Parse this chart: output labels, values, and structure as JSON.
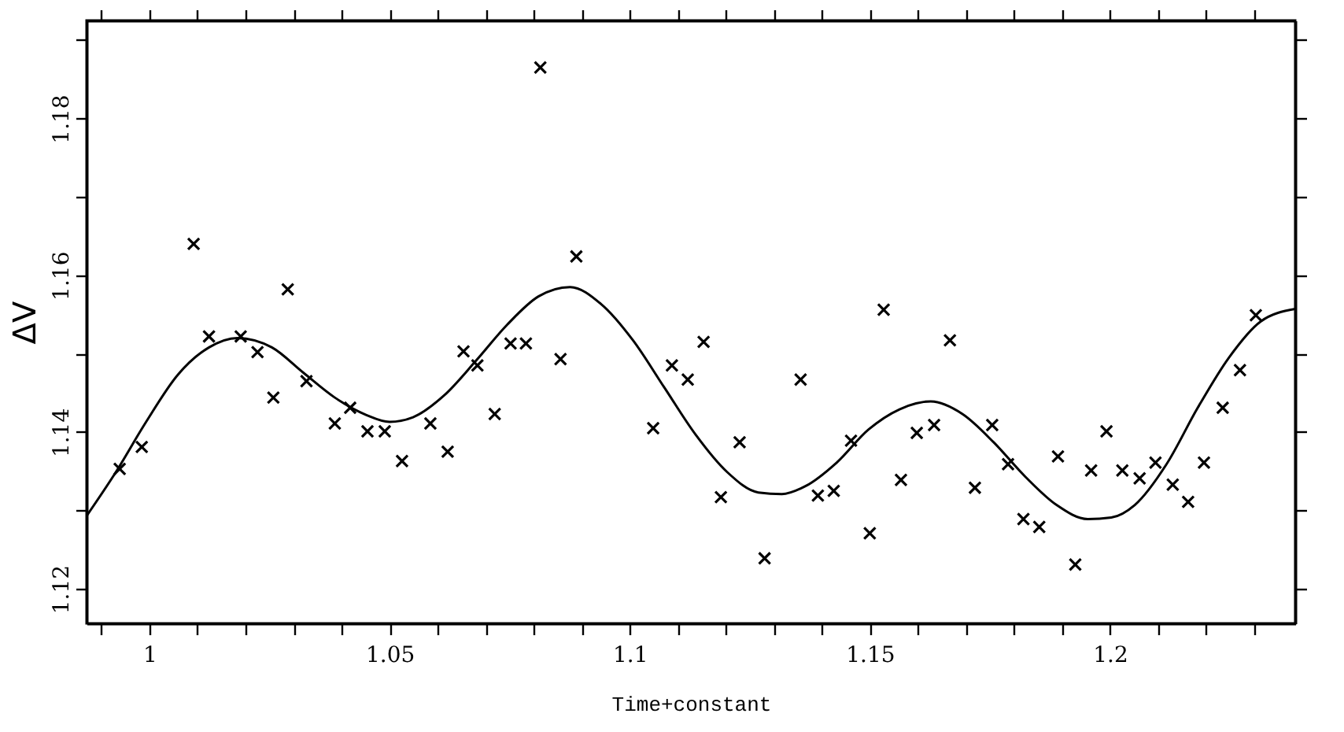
{
  "chart_data": {
    "type": "scatter",
    "xlabel": "Time+constant",
    "ylabel": "ΔV",
    "xlim": [
      0.9869,
      1.2386
    ],
    "ylim": [
      1.1156,
      1.1925
    ],
    "xticks": [
      {
        "value": 0.99,
        "label": null
      },
      1,
      {
        "value": 1.01,
        "label": null
      },
      {
        "value": 1.02,
        "label": null
      },
      {
        "value": 1.03,
        "label": null
      },
      {
        "value": 1.04,
        "label": null
      },
      1.05,
      {
        "value": 1.06,
        "label": null
      },
      {
        "value": 1.07,
        "label": null
      },
      {
        "value": 1.08,
        "label": null
      },
      {
        "value": 1.09,
        "label": null
      },
      1.1,
      {
        "value": 1.11,
        "label": null
      },
      {
        "value": 1.12,
        "label": null
      },
      {
        "value": 1.13,
        "label": null
      },
      {
        "value": 1.14,
        "label": null
      },
      1.15,
      {
        "value": 1.16,
        "label": null
      },
      {
        "value": 1.17,
        "label": null
      },
      {
        "value": 1.18,
        "label": null
      },
      {
        "value": 1.19,
        "label": null
      },
      1.2,
      {
        "value": 1.21,
        "label": null
      },
      {
        "value": 1.22,
        "label": null
      },
      {
        "value": 1.23,
        "label": null
      }
    ],
    "yticks": [
      1.12,
      {
        "value": 1.13,
        "label": null
      },
      1.14,
      {
        "value": 1.15,
        "label": null
      },
      1.16,
      {
        "value": 1.17,
        "label": null
      },
      1.18,
      {
        "value": 1.19,
        "label": null
      }
    ],
    "grid": false,
    "series": [
      {
        "marker": "cross",
        "color": "#000000",
        "x": [
          0.9938,
          0.9984,
          1.0092,
          1.0124,
          1.019,
          1.0225,
          1.0258,
          1.0288,
          1.0327,
          1.0386,
          1.0418,
          1.0454,
          1.049,
          1.0526,
          1.0585,
          1.0621,
          1.0654,
          1.0683,
          1.0719,
          1.0752,
          1.0784,
          1.0814,
          1.0856,
          1.0889,
          1.1049,
          1.1088,
          1.1121,
          1.1154,
          1.119,
          1.1229,
          1.1281,
          1.1356,
          1.1392,
          1.1425,
          1.1461,
          1.15,
          1.1529,
          1.1565,
          1.1598,
          1.1634,
          1.1667,
          1.1719,
          1.1755,
          1.1788,
          1.182,
          1.1853,
          1.1892,
          1.1928,
          1.1961,
          1.1993,
          1.2026,
          1.2062,
          1.2095,
          1.2131,
          1.2163,
          1.2196,
          1.2235,
          1.2271,
          1.2304
        ],
        "values": [
          1.1353,
          1.1381,
          1.164,
          1.1522,
          1.1522,
          1.1502,
          1.1444,
          1.1582,
          1.1465,
          1.1411,
          1.1431,
          1.1401,
          1.1401,
          1.1363,
          1.1411,
          1.1375,
          1.1503,
          1.1485,
          1.1423,
          1.1513,
          1.1513,
          1.1865,
          1.1493,
          1.1624,
          1.1405,
          1.1485,
          1.1467,
          1.1515,
          1.1317,
          1.1387,
          1.1239,
          1.1467,
          1.1319,
          1.1325,
          1.1389,
          1.1271,
          1.1556,
          1.1339,
          1.1399,
          1.1409,
          1.1517,
          1.1329,
          1.1409,
          1.1359,
          1.1289,
          1.1279,
          1.1369,
          1.1231,
          1.1351,
          1.1401,
          1.1351,
          1.1341,
          1.1361,
          1.1333,
          1.1311,
          1.1361,
          1.1431,
          1.1479,
          1.1549
        ]
      },
      {
        "type": "line",
        "line_style": "solid",
        "color": "#000000",
        "x": [
          0.9869,
          0.9928,
          0.9993,
          1.0059,
          1.0124,
          1.0183,
          1.0255,
          1.032,
          1.0386,
          1.0451,
          1.05,
          1.0549,
          1.0614,
          1.068,
          1.0745,
          1.081,
          1.0876,
          1.0941,
          1.1007,
          1.1072,
          1.1137,
          1.1203,
          1.1268,
          1.1317,
          1.1366,
          1.1431,
          1.1497,
          1.1562,
          1.1627,
          1.1693,
          1.1758,
          1.1824,
          1.1889,
          1.1954,
          1.2003,
          1.2052,
          1.2118,
          1.2183,
          1.2248,
          1.2314,
          1.2386
        ],
        "values": [
          1.1293,
          1.1347,
          1.1413,
          1.1473,
          1.1508,
          1.152,
          1.1508,
          1.1476,
          1.1444,
          1.1422,
          1.1413,
          1.1419,
          1.1447,
          1.1491,
          1.1537,
          1.1573,
          1.1585,
          1.1563,
          1.1517,
          1.1457,
          1.1397,
          1.1349,
          1.1323,
          1.1321,
          1.1331,
          1.1361,
          1.1403,
          1.1429,
          1.1439,
          1.1423,
          1.1387,
          1.1343,
          1.1307,
          1.1289,
          1.1291,
          1.1307,
          1.1359,
          1.1431,
          1.1495,
          1.1541,
          1.1557
        ]
      }
    ]
  }
}
